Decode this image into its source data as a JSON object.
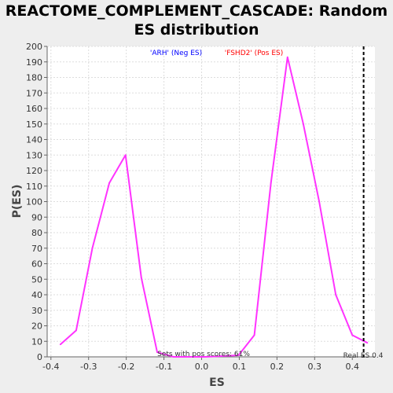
{
  "chart_data": {
    "type": "line",
    "title_line1": "REACTOME_COMPLEMENT_CASCADE: Random",
    "title_line2": "ES distribution",
    "xlabel": "ES",
    "ylabel": "P(ES)",
    "xlim": [
      -0.41,
      0.46
    ],
    "ylim": [
      0,
      200
    ],
    "xticks": [
      -0.4,
      -0.3,
      -0.2,
      -0.1,
      0.0,
      0.1,
      0.2,
      0.3,
      0.4
    ],
    "xtick_labels": [
      "-0.4",
      "-0.3",
      "-0.2",
      "-0.1",
      "0.0",
      "0.1",
      "0.2",
      "0.3",
      "0.4"
    ],
    "yticks": [
      0,
      10,
      20,
      30,
      40,
      50,
      60,
      70,
      80,
      90,
      100,
      110,
      120,
      130,
      140,
      150,
      160,
      170,
      180,
      190,
      200
    ],
    "grid": true,
    "series": [
      {
        "color": "#ff33ff",
        "x": [
          -0.375,
          -0.333,
          -0.29,
          -0.245,
          -0.202,
          -0.16,
          -0.118,
          -0.075,
          0.01,
          0.098,
          0.14,
          0.184,
          0.228,
          0.27,
          0.312,
          0.356,
          0.4,
          0.44
        ],
        "y": [
          8,
          17,
          70,
          112,
          130,
          51,
          3,
          0,
          0,
          1,
          14,
          112,
          193,
          150,
          100,
          40,
          14,
          9
        ]
      }
    ],
    "annotations": {
      "neg_label": "'ARH' (Neg ES)",
      "neg_color": "#0000ff",
      "pos_label": "'FSHD2' (Pos ES)",
      "pos_color": "#ff0000",
      "pos_scores_text": "Sets with pos scores: 61%",
      "real_es_text": "Real ES 0.4",
      "real_es_value": 0.43
    }
  }
}
